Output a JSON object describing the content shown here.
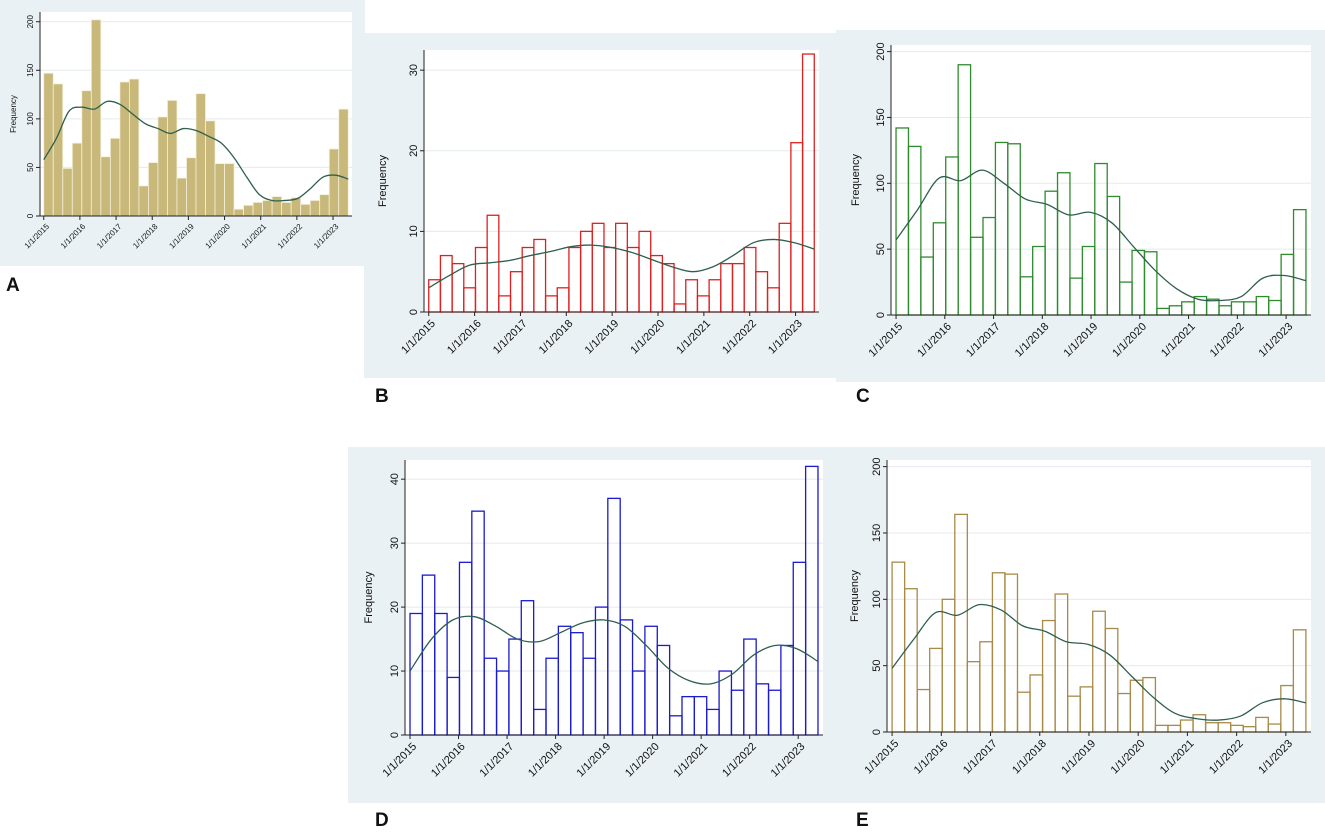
{
  "chart_data": [
    {
      "panel": "A",
      "type": "bar",
      "title": "",
      "xlabel": "",
      "ylabel": "Frequency",
      "ylim": [
        0,
        210
      ],
      "yticks": [
        0,
        50,
        100,
        150,
        200
      ],
      "xticks": [
        "1/1/2015",
        "1/1/2016",
        "1/1/2017",
        "1/1/2018",
        "1/1/2019",
        "1/1/2020",
        "1/1/2021",
        "1/1/2022",
        "1/1/2023"
      ],
      "style": "filled",
      "bar_color": "#c8b87a",
      "values": [
        147,
        136,
        49,
        75,
        129,
        202,
        61,
        80,
        138,
        141,
        31,
        55,
        102,
        119,
        39,
        60,
        126,
        98,
        54,
        54,
        7,
        11,
        14,
        16,
        20,
        14,
        19,
        12,
        16,
        22,
        69,
        110
      ],
      "density": [
        58,
        80,
        108,
        112,
        110,
        118,
        115,
        105,
        95,
        90,
        85,
        90,
        88,
        82,
        75,
        60,
        40,
        22,
        16,
        16,
        18,
        28,
        40,
        42,
        38
      ]
    },
    {
      "panel": "B",
      "type": "bar",
      "title": "",
      "xlabel": "",
      "ylabel": "Frequency",
      "ylim": [
        0,
        32.5
      ],
      "yticks": [
        0,
        10,
        20,
        30
      ],
      "xticks": [
        "1/1/2015",
        "1/1/2016",
        "1/1/2017",
        "1/1/2018",
        "1/1/2019",
        "1/1/2020",
        "1/1/2021",
        "1/1/2022",
        "1/1/2023"
      ],
      "style": "outline",
      "bar_color": "#e02020",
      "values": [
        4,
        7,
        6,
        3,
        8,
        12,
        2,
        5,
        8,
        9,
        2,
        3,
        8,
        10,
        11,
        8,
        11,
        8,
        10,
        7,
        6,
        1,
        4,
        2,
        4,
        6,
        6,
        8,
        5,
        3,
        11,
        21,
        32
      ],
      "density": [
        3,
        4.5,
        5.8,
        6.1,
        6.4,
        7,
        7.5,
        8.1,
        8.3,
        8,
        7.4,
        6.5,
        5.6,
        5,
        5.6,
        7,
        8.6,
        9,
        8.6,
        7.8
      ]
    },
    {
      "panel": "C",
      "type": "bar",
      "title": "",
      "xlabel": "",
      "ylabel": "Frequency",
      "ylim": [
        0,
        205
      ],
      "yticks": [
        0,
        50,
        100,
        150,
        200
      ],
      "xticks": [
        "1/1/2015",
        "1/1/2016",
        "1/1/2017",
        "1/1/2018",
        "1/1/2019",
        "1/1/2020",
        "1/1/2021",
        "1/1/2022",
        "1/1/2023"
      ],
      "style": "outline",
      "bar_color": "#2e8b2e",
      "values": [
        142,
        128,
        44,
        70,
        120,
        190,
        59,
        74,
        131,
        130,
        29,
        52,
        94,
        108,
        28,
        52,
        115,
        90,
        25,
        49,
        48,
        5,
        7,
        10,
        14,
        12,
        7,
        10,
        10,
        14,
        11,
        46,
        80
      ],
      "density": [
        57,
        80,
        104,
        102,
        110,
        100,
        88,
        84,
        76,
        78,
        70,
        52,
        34,
        20,
        12,
        11,
        14,
        28,
        30,
        26
      ]
    },
    {
      "panel": "D",
      "type": "bar",
      "title": "",
      "xlabel": "",
      "ylabel": "Frequency",
      "ylim": [
        0,
        43
      ],
      "yticks": [
        0,
        10,
        20,
        30,
        40
      ],
      "xticks": [
        "1/1/2015",
        "1/1/2016",
        "1/1/2017",
        "1/1/2018",
        "1/1/2019",
        "1/1/2020",
        "1/1/2021",
        "1/1/2022",
        "1/1/2023"
      ],
      "style": "outline",
      "bar_color": "#1a1ad0",
      "values": [
        19,
        25,
        19,
        9,
        27,
        35,
        12,
        10,
        15,
        21,
        4,
        12,
        17,
        16,
        12,
        20,
        37,
        18,
        10,
        17,
        14,
        3,
        6,
        6,
        4,
        10,
        7,
        15,
        8,
        7,
        14,
        27,
        42
      ],
      "density": [
        10,
        15,
        18,
        18.5,
        17,
        15,
        14.6,
        16,
        17.5,
        18,
        17,
        14,
        10.5,
        8.5,
        8,
        9.5,
        12.5,
        14,
        13.5,
        11.5
      ]
    },
    {
      "panel": "E",
      "type": "bar",
      "title": "",
      "xlabel": "",
      "ylabel": "Frequency",
      "ylim": [
        0,
        205
      ],
      "yticks": [
        0,
        50,
        100,
        150,
        200
      ],
      "xticks": [
        "1/1/2015",
        "1/1/2016",
        "1/1/2017",
        "1/1/2018",
        "1/1/2019",
        "1/1/2020",
        "1/1/2021",
        "1/1/2022",
        "1/1/2023"
      ],
      "style": "outline",
      "bar_color": "#a88a48",
      "values": [
        128,
        108,
        32,
        63,
        100,
        164,
        53,
        68,
        120,
        119,
        30,
        43,
        84,
        104,
        27,
        34,
        91,
        78,
        29,
        39,
        41,
        5,
        5,
        9,
        13,
        7,
        7,
        5,
        4,
        11,
        6,
        35,
        77
      ],
      "density": [
        48,
        70,
        90,
        88,
        96,
        92,
        80,
        76,
        68,
        66,
        58,
        42,
        26,
        14,
        10,
        9,
        12,
        22,
        25,
        22
      ]
    }
  ],
  "labels": {
    "a": "A",
    "b": "B",
    "c": "C",
    "d": "D",
    "e": "E"
  },
  "colors": {
    "panel_bg": "#eaf1f4",
    "plot_bg": "#ffffff",
    "grid": "#e4eaee",
    "density": "#2f5f4f"
  }
}
